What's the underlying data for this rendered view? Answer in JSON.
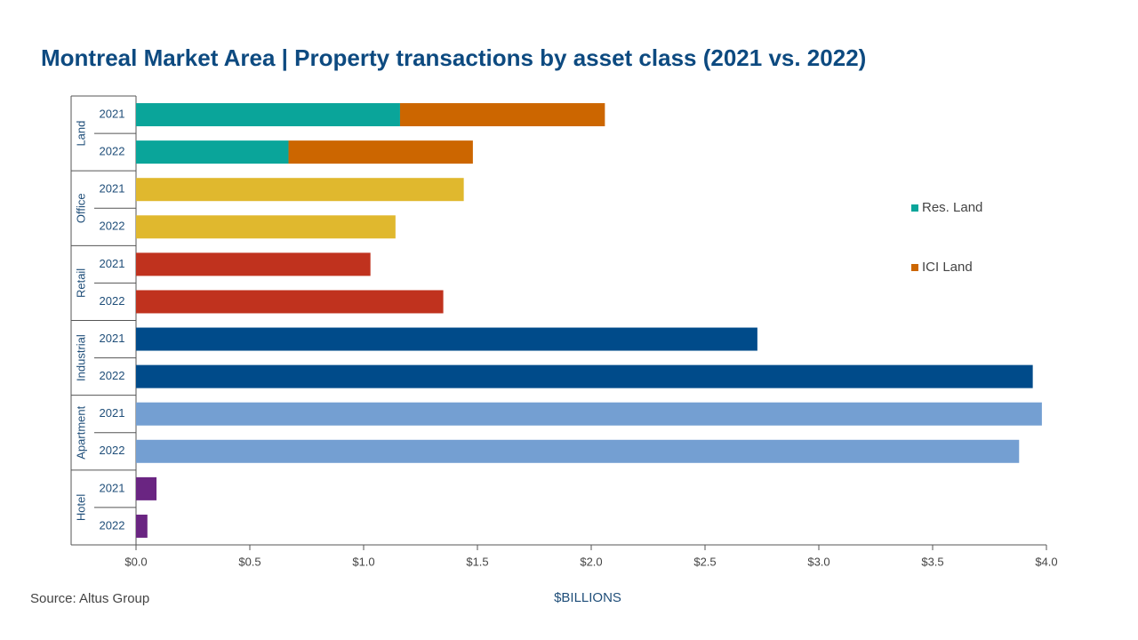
{
  "chart_data": {
    "type": "grouped-stacked-hbar",
    "title": "Montreal Market Area | Property transactions by asset class (2021 vs. 2022)",
    "xlabel": "$BILLIONS",
    "source": "Source:  Altus Group",
    "groups": [
      {
        "name": "Land",
        "categories": [
          "2021",
          "2022"
        ],
        "series": [
          {
            "name": "Res. Land",
            "color": "#0aa59a",
            "values": [
              1.16,
              0.67
            ]
          },
          {
            "name": "ICI Land",
            "color": "#cc6600",
            "values": [
              0.9,
              0.81
            ]
          }
        ]
      },
      {
        "name": "Office",
        "categories": [
          "2021",
          "2022"
        ],
        "color": "#e0b82e",
        "values": [
          1.44,
          1.14
        ]
      },
      {
        "name": "Retail",
        "categories": [
          "2021",
          "2022"
        ],
        "color": "#c0321e",
        "values": [
          1.03,
          1.35
        ]
      },
      {
        "name": "Industrial",
        "categories": [
          "2021",
          "2022"
        ],
        "color": "#004b8a",
        "values": [
          2.73,
          3.94
        ]
      },
      {
        "name": "Apartment",
        "categories": [
          "2021",
          "2022"
        ],
        "color": "#749fd2",
        "values": [
          3.98,
          3.88
        ]
      },
      {
        "name": "Hotel",
        "categories": [
          "2021",
          "2022"
        ],
        "color": "#6a2582",
        "values": [
          0.09,
          0.05
        ]
      }
    ],
    "xlim": [
      0,
      4
    ],
    "xticks": [
      {
        "value": 0,
        "label": "$0.0"
      },
      {
        "value": 0.5,
        "label": "$0.5"
      },
      {
        "value": 1,
        "label": "$1.0"
      },
      {
        "value": 1.5,
        "label": "$1.5"
      },
      {
        "value": 2,
        "label": "$2.0"
      },
      {
        "value": 2.5,
        "label": "$2.5"
      },
      {
        "value": 3,
        "label": "$3.0"
      },
      {
        "value": 3.5,
        "label": "$3.5"
      },
      {
        "value": 4,
        "label": "$4.0"
      }
    ]
  }
}
